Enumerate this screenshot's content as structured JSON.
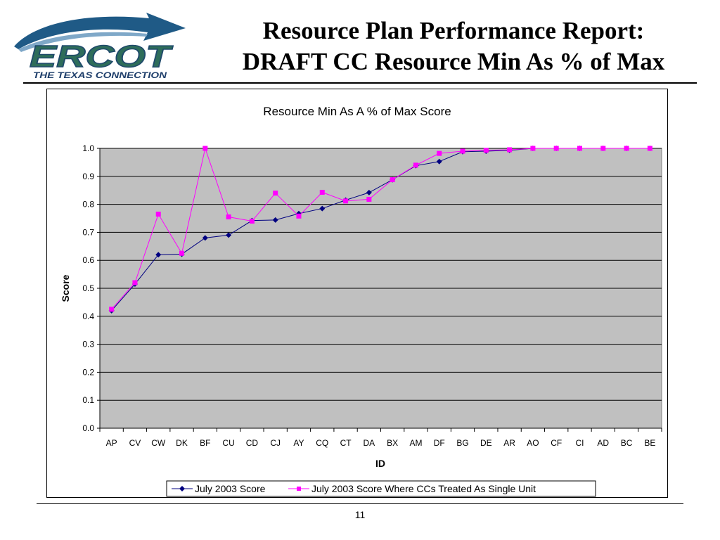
{
  "logo": {
    "name": "ERCOT",
    "tagline": "THE TEXAS CONNECTION",
    "color_primary": "#1f5a86",
    "color_accent": "#4a8a5c"
  },
  "slide": {
    "title_line1": "Resource Plan Performance Report:",
    "title_line2": "DRAFT CC Resource Min As % of Max",
    "page_number": "11"
  },
  "chart_data": {
    "type": "line",
    "title": "Resource Min As A % of Max Score",
    "xlabel": "ID",
    "ylabel": "Score",
    "ylim": [
      0,
      1.0
    ],
    "yticks": [
      "0.0",
      "0.1",
      "0.2",
      "0.3",
      "0.4",
      "0.5",
      "0.6",
      "0.7",
      "0.8",
      "0.9",
      "1.0"
    ],
    "grid": true,
    "plot_background": "#c0c0c0",
    "legend_position": "bottom",
    "categories": [
      "AP",
      "CV",
      "CW",
      "DK",
      "BF",
      "CU",
      "CD",
      "CJ",
      "AY",
      "CQ",
      "CT",
      "DA",
      "BX",
      "AM",
      "DF",
      "BG",
      "DE",
      "AR",
      "AO",
      "CF",
      "CI",
      "AD",
      "BC",
      "BE"
    ],
    "series": [
      {
        "name": "July 2003 Score",
        "color": "#000080",
        "marker": "diamond",
        "values": [
          0.42,
          0.515,
          0.62,
          0.622,
          0.68,
          0.69,
          0.742,
          0.744,
          0.767,
          0.785,
          0.815,
          0.842,
          0.888,
          0.938,
          0.953,
          0.988,
          0.99,
          0.993,
          1.0,
          1.0,
          1.0,
          1.0,
          1.0,
          1.0
        ]
      },
      {
        "name": "July 2003 Score Where CCs Treated As Single Unit",
        "color": "#ff00ff",
        "marker": "square",
        "values": [
          0.425,
          0.52,
          0.765,
          0.625,
          1.0,
          0.755,
          0.74,
          0.84,
          0.758,
          0.843,
          0.812,
          0.818,
          0.888,
          0.94,
          0.982,
          0.99,
          0.993,
          0.995,
          1.0,
          1.0,
          1.0,
          1.0,
          1.0,
          1.0
        ]
      }
    ]
  }
}
